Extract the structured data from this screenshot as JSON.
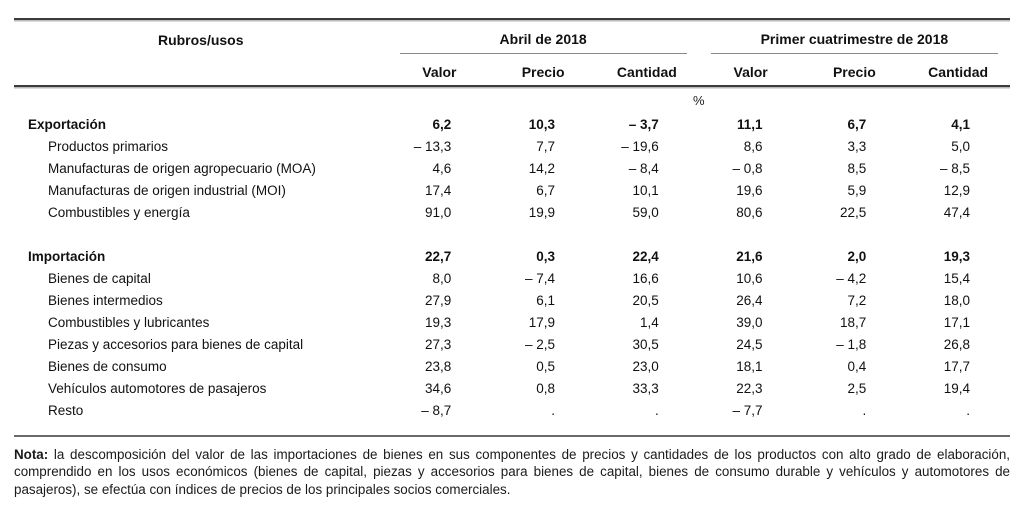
{
  "table": {
    "label_header": "Rubros/usos",
    "unit_row": "%",
    "groups": [
      {
        "label": "Abril de 2018",
        "columns": [
          "Valor",
          "Precio",
          "Cantidad"
        ]
      },
      {
        "label": "Primer cuatrimestre de 2018",
        "columns": [
          "Valor",
          "Precio",
          "Cantidad"
        ]
      }
    ],
    "sections": [
      {
        "rows": [
          {
            "label": "Exportación",
            "values": [
              "6,2",
              "10,3",
              "– 3,7",
              "11,1",
              "6,7",
              "4,1"
            ]
          },
          {
            "label": "Productos primarios",
            "values": [
              "– 13,3",
              "7,7",
              "– 19,6",
              "8,6",
              "3,3",
              "5,0"
            ]
          },
          {
            "label": "Manufacturas de origen agropecuario (MOA)",
            "values": [
              "4,6",
              "14,2",
              "– 8,4",
              "– 0,8",
              "8,5",
              "– 8,5"
            ]
          },
          {
            "label": "Manufacturas de origen industrial (MOI)",
            "values": [
              "17,4",
              "6,7",
              "10,1",
              "19,6",
              "5,9",
              "12,9"
            ]
          },
          {
            "label": "Combustibles y energía",
            "values": [
              "91,0",
              "19,9",
              "59,0",
              "80,6",
              "22,5",
              "47,4"
            ]
          }
        ]
      },
      {
        "rows": [
          {
            "label": "Importación",
            "values": [
              "22,7",
              "0,3",
              "22,4",
              "21,6",
              "2,0",
              "19,3"
            ]
          },
          {
            "label": "Bienes de capital",
            "values": [
              "8,0",
              "– 7,4",
              "16,6",
              "10,6",
              "– 4,2",
              "15,4"
            ]
          },
          {
            "label": "Bienes intermedios",
            "values": [
              "27,9",
              "6,1",
              "20,5",
              "26,4",
              "7,2",
              "18,0"
            ]
          },
          {
            "label": "Combustibles y lubricantes",
            "values": [
              "19,3",
              "17,9",
              "1,4",
              "39,0",
              "18,7",
              "17,1"
            ]
          },
          {
            "label": "Piezas y accesorios para bienes de capital",
            "values": [
              "27,3",
              "– 2,5",
              "30,5",
              "24,5",
              "– 1,8",
              "26,8"
            ]
          },
          {
            "label": "Bienes de consumo",
            "values": [
              "23,8",
              "0,5",
              "23,0",
              "18,1",
              "0,4",
              "17,7"
            ]
          },
          {
            "label": "Vehículos automotores de pasajeros",
            "values": [
              "34,6",
              "0,8",
              "33,3",
              "22,3",
              "2,5",
              "19,4"
            ]
          },
          {
            "label": "Resto",
            "values": [
              "– 8,7",
              ".",
              ".",
              "– 7,7",
              ".",
              "."
            ]
          }
        ]
      }
    ]
  },
  "note": {
    "label": "Nota:",
    "text": " la descomposición del valor de las importaciones de bienes en sus componentes de precios y cantidades de los productos con alto grado de elaboración, comprendido en los usos económicos (bienes de capital, piezas y accesorios para bienes de capital, bienes de consumo durable y vehículos y automotores de pasajeros), se efectúa con índices de precios de los principales socios comerciales."
  }
}
